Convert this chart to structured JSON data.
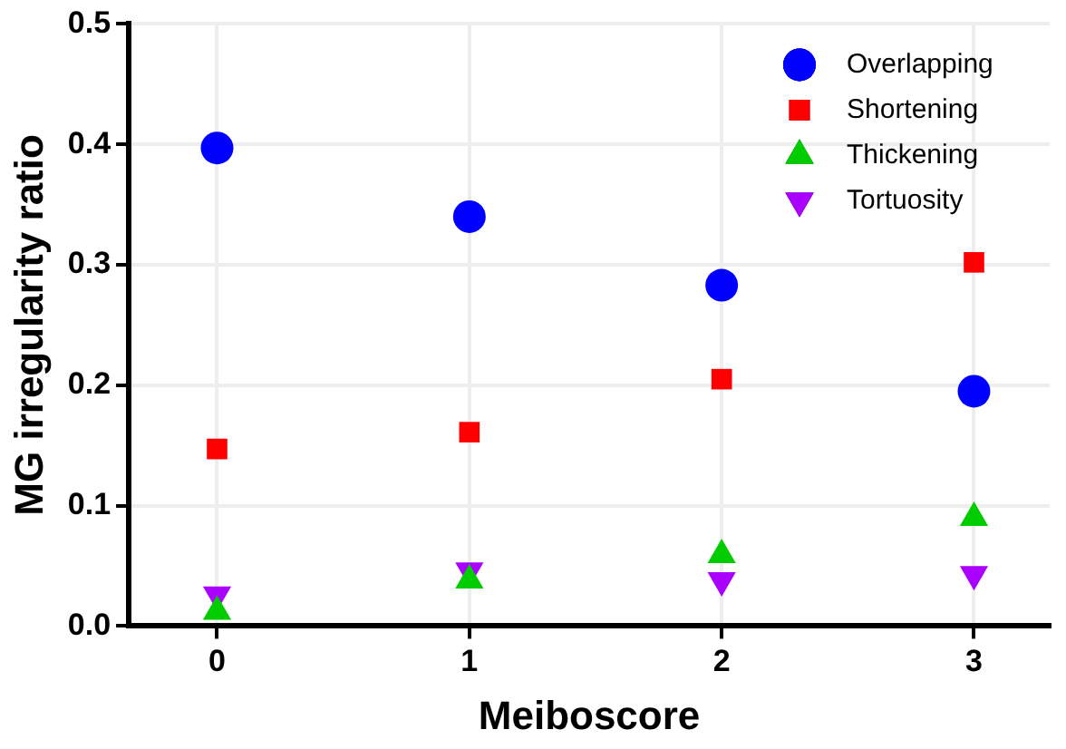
{
  "chart_data": {
    "type": "scatter",
    "xlabel": "Meiboscore",
    "ylabel": "MG irregularity ratio",
    "x": [
      0,
      1,
      2,
      3
    ],
    "xlim": [
      -0.35,
      3.3
    ],
    "xticks": [
      0,
      1,
      2,
      3
    ],
    "ylim": [
      0,
      0.5
    ],
    "yticks": [
      {
        "value": 0,
        "label": "0.0"
      },
      0.1,
      0.2,
      0.3,
      0.4,
      0.5
    ],
    "grid": true,
    "legend": "top right",
    "series": [
      {
        "name": "Overlapping",
        "color": "#0000ff",
        "marker": "circle",
        "values": [
          0.397,
          0.34,
          0.283,
          0.195
        ]
      },
      {
        "name": "Shortening",
        "color": "#ff0000",
        "marker": "square",
        "values": [
          0.147,
          0.161,
          0.205,
          0.302
        ]
      },
      {
        "name": "Thickening",
        "color": "#00cc00",
        "marker": "triangle",
        "values": [
          0.012,
          0.038,
          0.059,
          0.09
        ]
      },
      {
        "name": "Tortuosity",
        "color": "#aa00ff",
        "marker": "triangle_down",
        "values": [
          0.026,
          0.046,
          0.038,
          0.043
        ]
      }
    ]
  }
}
